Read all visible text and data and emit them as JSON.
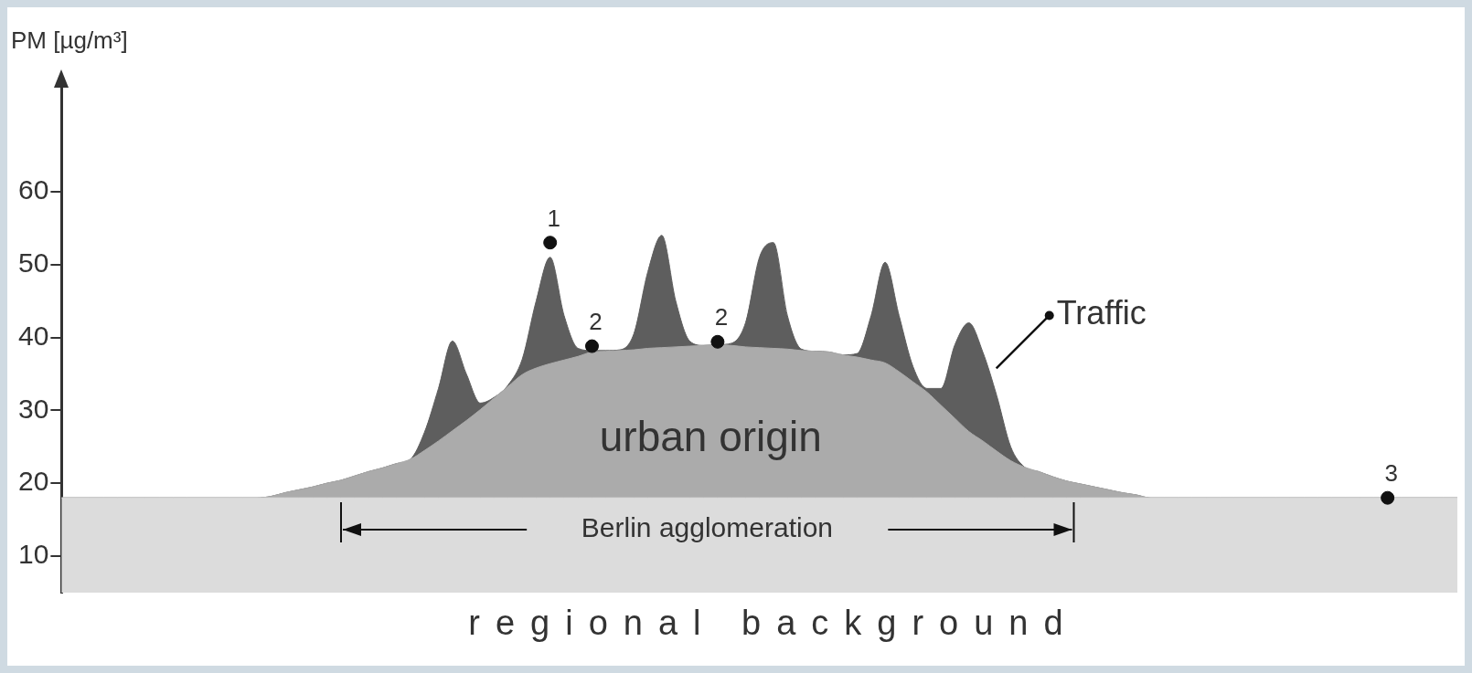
{
  "chart_data": {
    "type": "area",
    "ylabel": "PM [µg/m³]",
    "categories": [
      null,
      null,
      null,
      null,
      null,
      null,
      null,
      null,
      null,
      null,
      null,
      null,
      null,
      null,
      null,
      null,
      null,
      null,
      null,
      null,
      null,
      null,
      null,
      null,
      null,
      null,
      null,
      null,
      null,
      null,
      null,
      null,
      null,
      null,
      null,
      null,
      null,
      null,
      null,
      null,
      null,
      null,
      null,
      null,
      null,
      null,
      null,
      null,
      null,
      null,
      null,
      null,
      null,
      null,
      null,
      null,
      null,
      null,
      null,
      null,
      null,
      null,
      null,
      null,
      null,
      null,
      null,
      null,
      null,
      null,
      null,
      null,
      null,
      null,
      null,
      null,
      null,
      null,
      null,
      null,
      null,
      null,
      null,
      null,
      null,
      null,
      null,
      null,
      null,
      null,
      null,
      null,
      null,
      null,
      null,
      null,
      null,
      null,
      null,
      null,
      null
    ],
    "ylim": [
      5,
      75
    ],
    "yticks": [
      10,
      20,
      30,
      40,
      50,
      60
    ],
    "tick_labels": "y",
    "grid": false,
    "legend": false,
    "series": [
      {
        "name": "Traffic",
        "color": "#5e5e5e",
        "values": [
          18,
          18,
          18,
          18,
          18,
          18,
          18,
          18,
          18,
          18,
          18,
          18,
          18,
          18,
          18,
          18.2,
          18.7,
          19.1,
          19.5,
          20,
          20.4,
          21,
          21.6,
          22.1,
          22.7,
          23.3,
          27,
          33,
          39.5,
          35,
          31,
          31.8,
          33.5,
          37,
          45,
          51,
          43,
          38.5,
          38.2,
          38.2,
          38.3,
          40.5,
          49,
          54,
          45,
          39.5,
          38.9,
          39,
          39.2,
          42,
          51,
          53,
          43,
          38.4,
          38.1,
          38,
          37.6,
          37.8,
          43,
          50.3,
          43,
          36,
          33,
          33,
          39,
          42,
          38,
          32,
          25,
          22.2,
          21.6,
          20.9,
          20.3,
          19.9,
          19.5,
          19.1,
          18.7,
          18.4,
          18,
          18,
          18,
          18,
          18,
          18,
          18,
          18,
          18,
          18,
          18,
          18,
          18,
          18,
          18,
          18,
          18,
          18,
          18,
          18,
          18,
          18,
          18
        ]
      },
      {
        "name": "urban origin",
        "color": "#ababab",
        "values": [
          18,
          18,
          18,
          18,
          18,
          18,
          18,
          18,
          18,
          18,
          18,
          18,
          18,
          18,
          18,
          18.2,
          18.7,
          19.1,
          19.5,
          20,
          20.4,
          21,
          21.6,
          22.1,
          22.7,
          23.3,
          24.5,
          25.8,
          27.2,
          28.6,
          30.1,
          31.7,
          33.3,
          34.9,
          35.8,
          36.4,
          36.9,
          37.4,
          38,
          38.1,
          38.2,
          38.3,
          38.5,
          38.6,
          38.7,
          38.8,
          38.9,
          39,
          38.9,
          38.7,
          38.6,
          38.5,
          38.4,
          38.2,
          38.1,
          38,
          37.6,
          37.3,
          36.9,
          36.5,
          35.3,
          33.9,
          32.5,
          30.7,
          28.9,
          27.1,
          25.8,
          24.4,
          23.1,
          22.2,
          21.6,
          20.9,
          20.3,
          19.9,
          19.5,
          19.1,
          18.7,
          18.4,
          18,
          18,
          18,
          18,
          18,
          18,
          18,
          18,
          18,
          18,
          18,
          18,
          18,
          18,
          18,
          18,
          18,
          18,
          18,
          18,
          18,
          18,
          18
        ]
      },
      {
        "name": "regional background",
        "color": "#dcdcdc",
        "values": [
          18,
          18,
          18,
          18,
          18,
          18,
          18,
          18,
          18,
          18,
          18,
          18,
          18,
          18,
          18,
          18,
          18,
          18,
          18,
          18,
          18,
          18,
          18,
          18,
          18,
          18,
          18,
          18,
          18,
          18,
          18,
          18,
          18,
          18,
          18,
          18,
          18,
          18,
          18,
          18,
          18,
          18,
          18,
          18,
          18,
          18,
          18,
          18,
          18,
          18,
          18,
          18,
          18,
          18,
          18,
          18,
          18,
          18,
          18,
          18,
          18,
          18,
          18,
          18,
          18,
          18,
          18,
          18,
          18,
          18,
          18,
          18,
          18,
          18,
          18,
          18,
          18,
          18,
          18,
          18,
          18,
          18,
          18,
          18,
          18,
          18,
          18,
          18,
          18,
          18,
          18,
          18,
          18,
          18,
          18,
          18,
          18,
          18,
          18,
          18,
          18
        ]
      },
      {
        "type": "scatter",
        "color": "#111111",
        "values": [
          null,
          null,
          null,
          null,
          null,
          null,
          null,
          null,
          null,
          null,
          null,
          null,
          null,
          null,
          null,
          null,
          null,
          null,
          null,
          null,
          null,
          null,
          null,
          null,
          null,
          null,
          null,
          null,
          null,
          null,
          null,
          null,
          null,
          null,
          null,
          53,
          null,
          null,
          38.8,
          null,
          null,
          null,
          null,
          null,
          null,
          null,
          null,
          39.4,
          null,
          null,
          null,
          null,
          null,
          null,
          null,
          null,
          null,
          null,
          null,
          null,
          null,
          null,
          null,
          null,
          null,
          null,
          null,
          null,
          null,
          null,
          null,
          null,
          null,
          null,
          null,
          null,
          null,
          null,
          null,
          null,
          null,
          null,
          null,
          null,
          null,
          null,
          null,
          null,
          null,
          null,
          null,
          null,
          null,
          null,
          null,
          18,
          null,
          null,
          null,
          null,
          null
        ],
        "marker": "circle"
      }
    ],
    "annotations": [
      {
        "text": "1",
        "y": 53
      },
      {
        "text": "2",
        "y": 38.8
      },
      {
        "text": "2",
        "y": 39.4
      },
      {
        "text": "3",
        "y": 18
      },
      "Berlin agglomeration"
    ]
  }
}
